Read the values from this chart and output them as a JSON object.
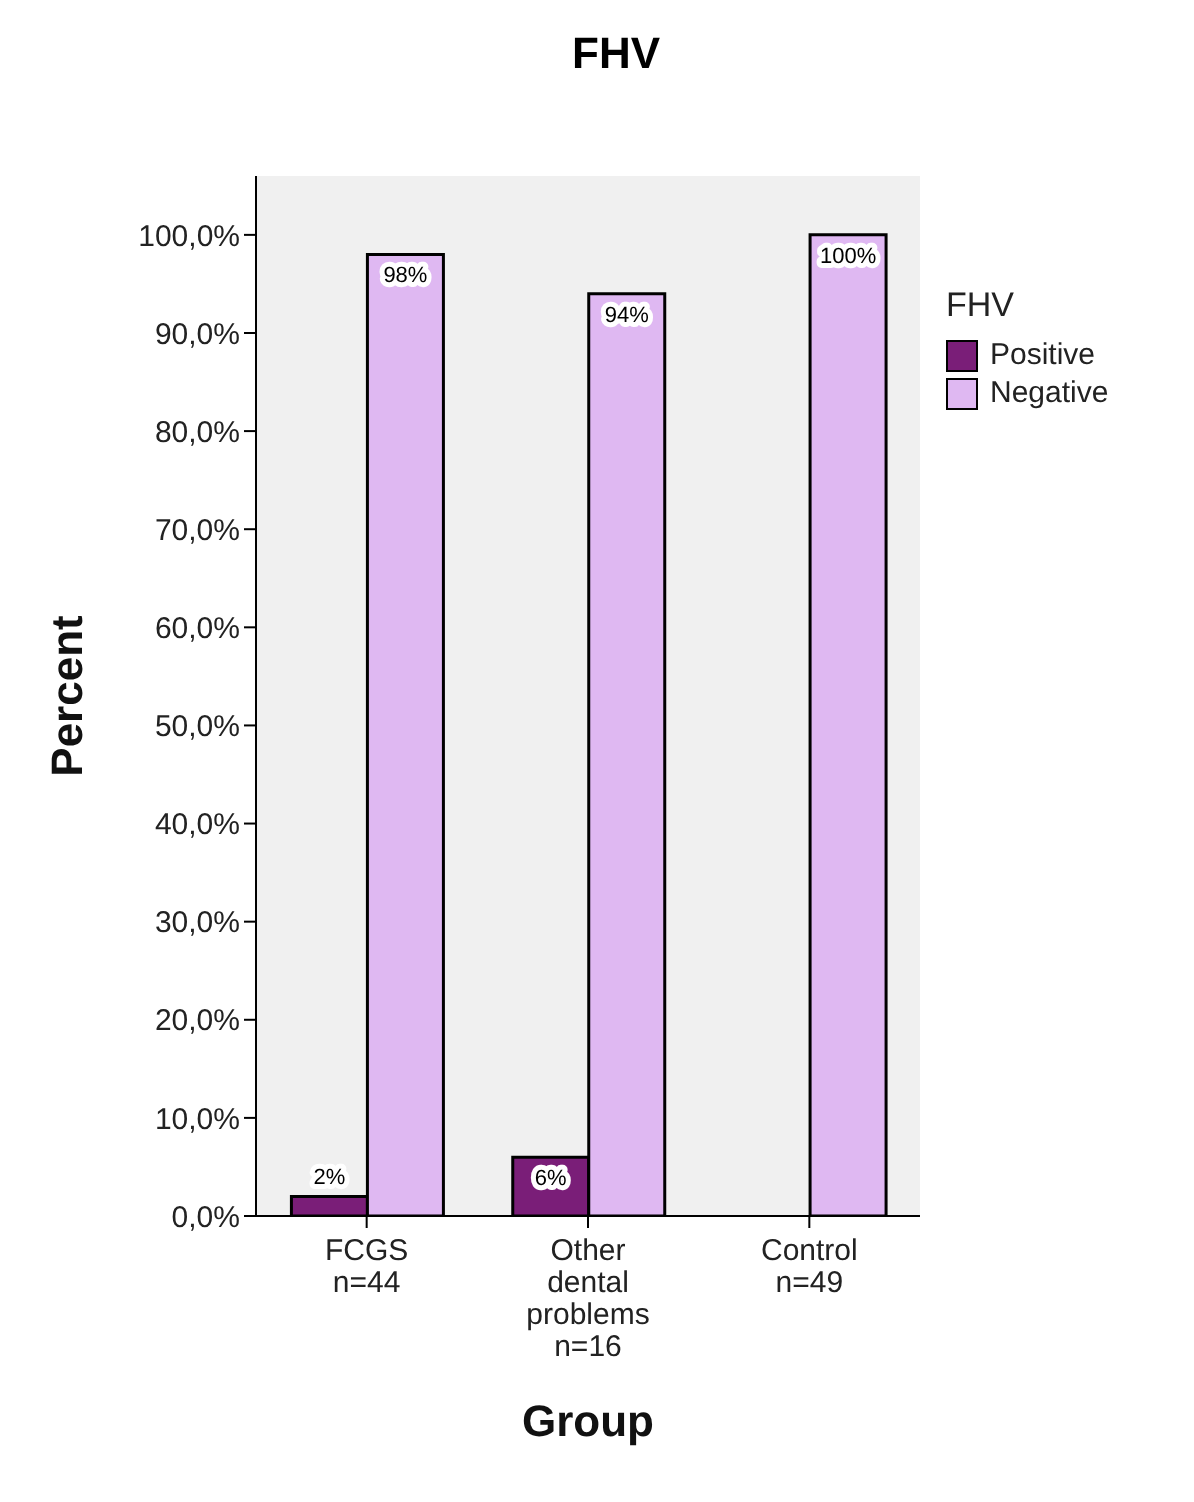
{
  "chart_data": {
    "type": "bar",
    "title": "FHV",
    "xlabel": "Group",
    "ylabel": "Percent",
    "legend_title": "FHV",
    "categories": [
      "FCGS\nn=44",
      "Other\ndental\nproblems\nn=16",
      "Control\nn=49"
    ],
    "series": [
      {
        "name": "Positive",
        "color": "#7a1e78",
        "values": [
          2,
          6,
          0
        ],
        "value_labels": [
          "2%",
          "6%",
          null
        ]
      },
      {
        "name": "Negative",
        "color": "#dfb8f2",
        "values": [
          98,
          94,
          100
        ],
        "value_labels": [
          "98%",
          "94%",
          "100%"
        ]
      }
    ],
    "ylim": [
      0,
      106
    ],
    "yticks": [
      {
        "value": 0,
        "label": "0,0%"
      },
      {
        "value": 10,
        "label": "10,0%"
      },
      {
        "value": 20,
        "label": "20,0%"
      },
      {
        "value": 30,
        "label": "30,0%"
      },
      {
        "value": 40,
        "label": "40,0%"
      },
      {
        "value": 50,
        "label": "50,0%"
      },
      {
        "value": 60,
        "label": "60,0%"
      },
      {
        "value": 70,
        "label": "70,0%"
      },
      {
        "value": 80,
        "label": "80,0%"
      },
      {
        "value": 90,
        "label": "90,0%"
      },
      {
        "value": 100,
        "label": "100,0%"
      }
    ],
    "grid": false,
    "legend": "top right"
  }
}
